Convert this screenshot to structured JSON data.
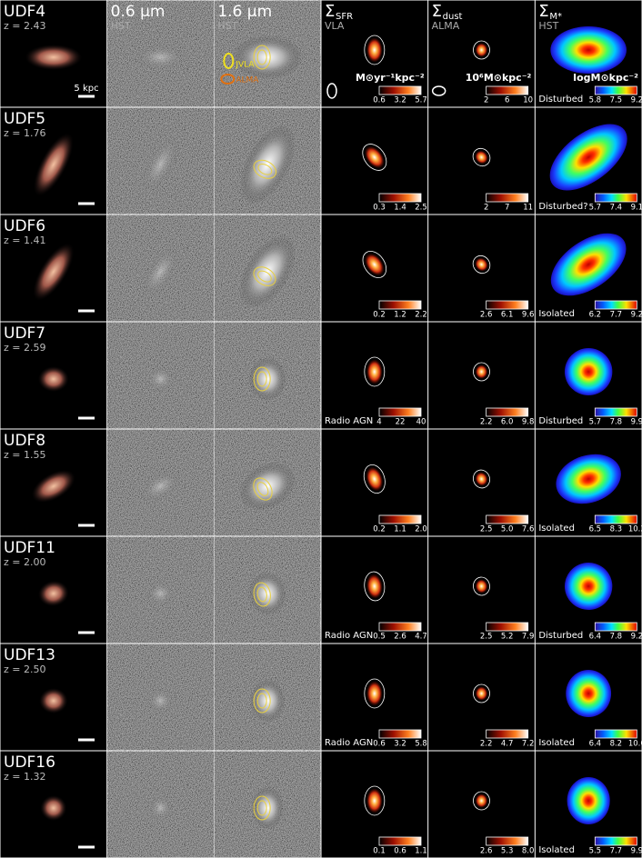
{
  "columns": [
    {
      "title": "0.6 μm",
      "subtitle": "HST"
    },
    {
      "title": "1.6 μm",
      "subtitle": "HST"
    },
    {
      "title": "Σ",
      "sub": "SFR",
      "subtitle": "VLA",
      "unit": "M⊙yr⁻¹kpc⁻²"
    },
    {
      "title": "Σ",
      "sub": "dust",
      "subtitle": "ALMA",
      "unit": "10⁶M⊙kpc⁻²"
    },
    {
      "title": "Σ",
      "sub": "M*",
      "subtitle": "HST",
      "unit": "logM⊙kpc⁻²"
    }
  ],
  "scale_bar": "5 kpc",
  "contour_legend": [
    "JVLA",
    "ALMA"
  ],
  "rows": [
    {
      "name": "UDF4",
      "z": "z = 2.43",
      "sfr_ticks": [
        "0.6",
        "3.2",
        "5.7"
      ],
      "dust_ticks": [
        "2",
        "6",
        "10"
      ],
      "mass_ticks": [
        "5.8",
        "7.5",
        "9.2"
      ],
      "mass_note": "Disturbed"
    },
    {
      "name": "UDF5",
      "z": "z = 1.76",
      "sfr_ticks": [
        "0.3",
        "1.4",
        "2.5"
      ],
      "dust_ticks": [
        "2",
        "7",
        "11"
      ],
      "mass_ticks": [
        "5.7",
        "7.4",
        "9.1"
      ],
      "mass_note": "Disturbed?"
    },
    {
      "name": "UDF6",
      "z": "z = 1.41",
      "sfr_ticks": [
        "0.2",
        "1.2",
        "2.2"
      ],
      "dust_ticks": [
        "2.6",
        "6.1",
        "9.6"
      ],
      "mass_ticks": [
        "6.2",
        "7.7",
        "9.2"
      ],
      "mass_note": "Isolated"
    },
    {
      "name": "UDF7",
      "z": "z = 2.59",
      "sfr_note": "Radio AGN",
      "sfr_ticks": [
        "4",
        "22",
        "40"
      ],
      "dust_ticks": [
        "2.2",
        "6.0",
        "9.8"
      ],
      "mass_ticks": [
        "5.7",
        "7.8",
        "9.9"
      ],
      "mass_note": "Disturbed"
    },
    {
      "name": "UDF8",
      "z": "z = 1.55",
      "sfr_ticks": [
        "0.2",
        "1.1",
        "2.0"
      ],
      "dust_ticks": [
        "2.5",
        "5.0",
        "7.6"
      ],
      "mass_ticks": [
        "6.5",
        "8.3",
        "10.2"
      ],
      "mass_note": "Isolated"
    },
    {
      "name": "UDF11",
      "z": "z = 2.00",
      "sfr_note": "Radio AGN",
      "sfr_ticks": [
        "0.5",
        "2.6",
        "4.7"
      ],
      "dust_ticks": [
        "2.5",
        "5.2",
        "7.9"
      ],
      "mass_ticks": [
        "6.4",
        "7.8",
        "9.2"
      ],
      "mass_note": "Disturbed"
    },
    {
      "name": "UDF13",
      "z": "z = 2.50",
      "sfr_note": "Radio AGN",
      "sfr_ticks": [
        "0.6",
        "3.2",
        "5.8"
      ],
      "dust_ticks": [
        "2.2",
        "4.7",
        "7.2"
      ],
      "mass_ticks": [
        "6.4",
        "8.2",
        "10.0"
      ],
      "mass_note": "Isolated"
    },
    {
      "name": "UDF16",
      "z": "z = 1.32",
      "sfr_ticks": [
        "0.1",
        "0.6",
        "1.1"
      ],
      "dust_ticks": [
        "2.6",
        "5.3",
        "8.0"
      ],
      "mass_ticks": [
        "5.5",
        "7.7",
        "9.9"
      ],
      "mass_note": "Isolated"
    }
  ]
}
